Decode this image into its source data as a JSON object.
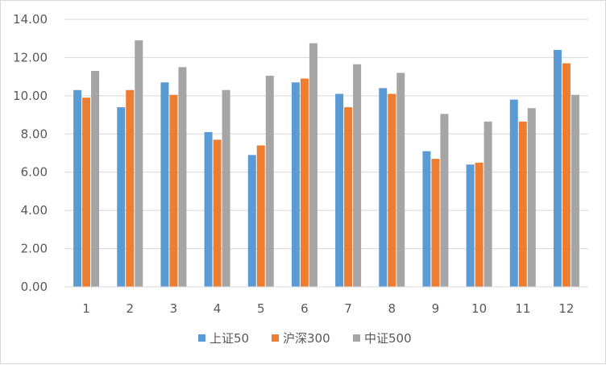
{
  "chart_data": {
    "type": "bar",
    "title": "",
    "xlabel": "",
    "ylabel": "",
    "categories": [
      "1",
      "2",
      "3",
      "4",
      "5",
      "6",
      "7",
      "8",
      "9",
      "10",
      "11",
      "12"
    ],
    "ylim": [
      0,
      14
    ],
    "y_ticks": [
      "0.00",
      "2.00",
      "4.00",
      "6.00",
      "8.00",
      "10.00",
      "12.00",
      "14.00"
    ],
    "grid": true,
    "legend_position": "bottom",
    "series": [
      {
        "name": "上证50",
        "color": "#5b9bd5",
        "values": [
          10.3,
          9.4,
          10.7,
          8.1,
          6.9,
          10.7,
          10.1,
          10.4,
          7.1,
          6.4,
          9.8,
          12.4
        ]
      },
      {
        "name": "沪深300",
        "color": "#ed7d31",
        "values": [
          9.9,
          10.3,
          10.05,
          7.7,
          7.4,
          10.9,
          9.4,
          10.1,
          6.7,
          6.5,
          8.65,
          11.7
        ]
      },
      {
        "name": "中证500",
        "color": "#a5a5a5",
        "values": [
          11.3,
          12.9,
          11.5,
          10.3,
          11.05,
          12.75,
          11.65,
          11.2,
          9.05,
          8.65,
          9.35,
          10.05
        ]
      }
    ]
  }
}
